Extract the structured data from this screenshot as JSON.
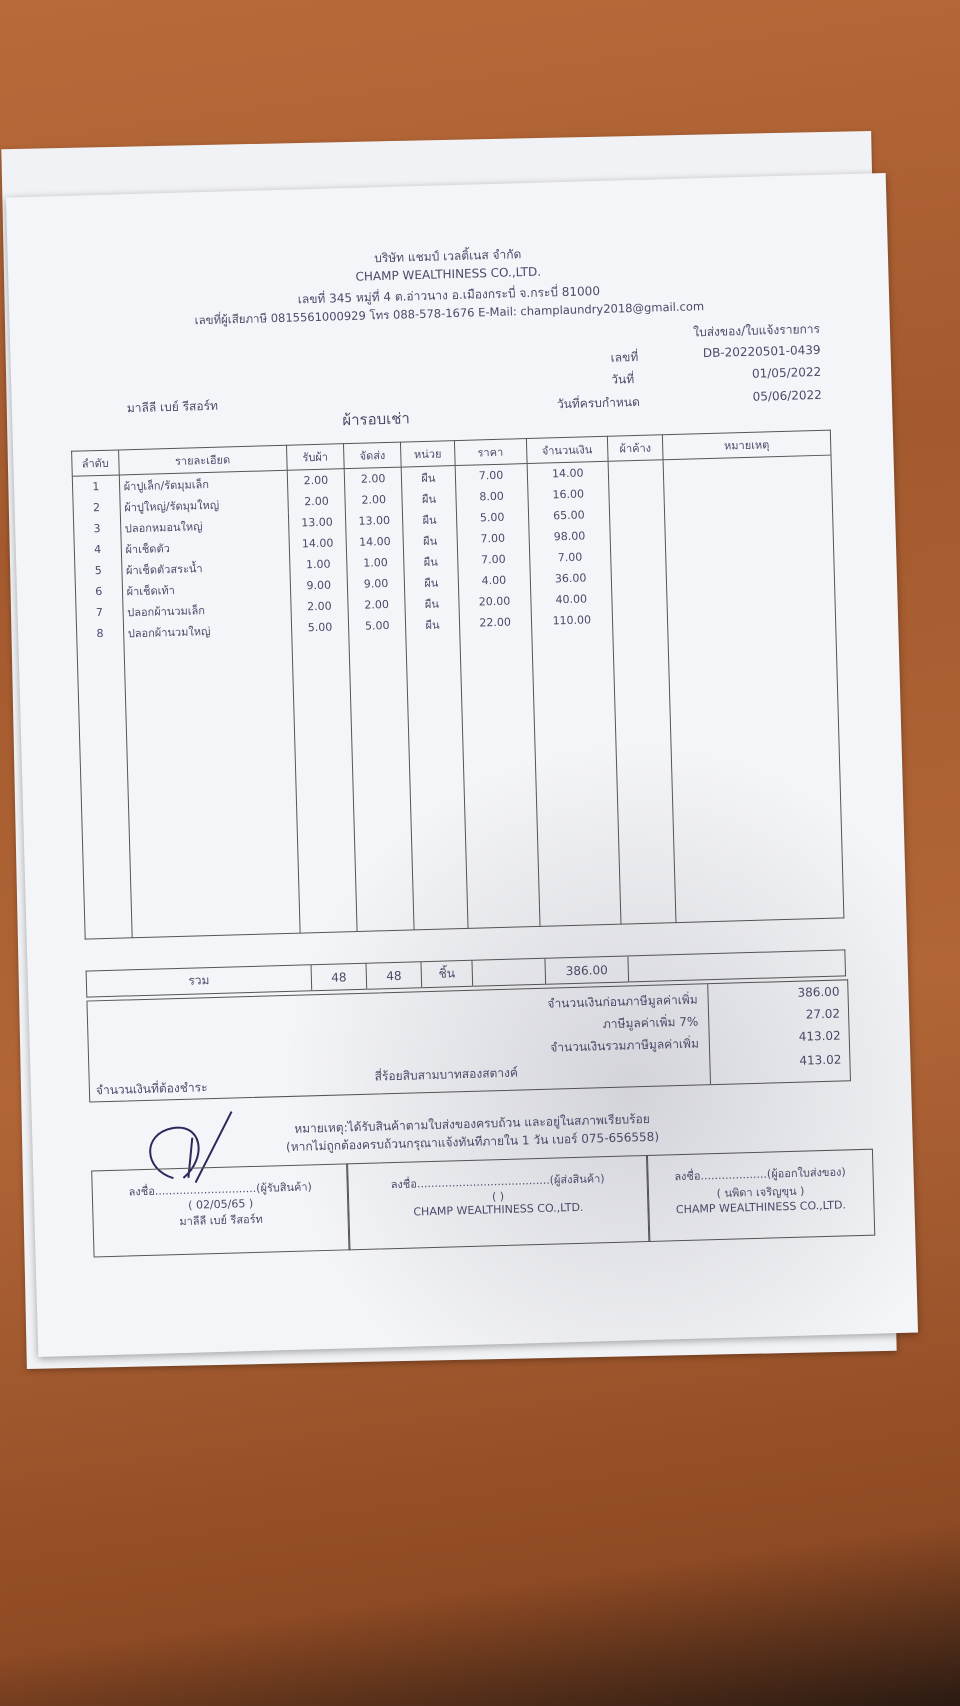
{
  "company": {
    "name_th": "บริษัท แชมป์ เวลติ้เนส จำกัด",
    "name_en": "CHAMP WEALTHINESS CO.,LTD.",
    "address": "เลขที่ 345 หมู่ที่ 4 ต.อ่าวนาง อ.เมืองกระบี่ จ.กระบี่ 81000",
    "contact": "เลขที่ผู้เสียภาษี 0815561000929 โทร 088-578-1676 E-Mail: champlaundry2018@gmail.com"
  },
  "doc": {
    "type": "ใบส่งของ/ใบแจ้งรายการ",
    "no_label": "เลขที่",
    "no": "DB-20220501-0439",
    "date_label": "วันที่",
    "date": "01/05/2022",
    "due_label": "วันที่ครบกำหนด",
    "due": "05/06/2022"
  },
  "customer": "มาลีลี เบย์ รีสอร์ท",
  "section_title": "ผ้ารอบเช่า",
  "columns": [
    "ลำดับ",
    "รายละเอียด",
    "รับผ้า",
    "จัดส่ง",
    "หน่วย",
    "ราคา",
    "จำนวนเงิน",
    "ผ้าค้าง",
    "หมายเหตุ"
  ],
  "items": [
    {
      "no": "1",
      "desc": "ผ้าปูเล็ก/รัดมุมเล็ก",
      "recv": "2.00",
      "sent": "2.00",
      "unit": "ผืน",
      "price": "7.00",
      "amount": "14.00"
    },
    {
      "no": "2",
      "desc": "ผ้าปูใหญ่/รัดมุมใหญ่",
      "recv": "2.00",
      "sent": "2.00",
      "unit": "ผืน",
      "price": "8.00",
      "amount": "16.00"
    },
    {
      "no": "3",
      "desc": "ปลอกหมอนใหญ่",
      "recv": "13.00",
      "sent": "13.00",
      "unit": "ผืน",
      "price": "5.00",
      "amount": "65.00"
    },
    {
      "no": "4",
      "desc": "ผ้าเช็ดตัว",
      "recv": "14.00",
      "sent": "14.00",
      "unit": "ผืน",
      "price": "7.00",
      "amount": "98.00"
    },
    {
      "no": "5",
      "desc": "ผ้าเช็ดตัวสระน้ำ",
      "recv": "1.00",
      "sent": "1.00",
      "unit": "ผืน",
      "price": "7.00",
      "amount": "7.00"
    },
    {
      "no": "6",
      "desc": "ผ้าเช็ดเท้า",
      "recv": "9.00",
      "sent": "9.00",
      "unit": "ผืน",
      "price": "4.00",
      "amount": "36.00"
    },
    {
      "no": "7",
      "desc": "ปลอกผ้านวมเล็ก",
      "recv": "2.00",
      "sent": "2.00",
      "unit": "ผืน",
      "price": "20.00",
      "amount": "40.00"
    },
    {
      "no": "8",
      "desc": "ปลอกผ้านวมใหญ่",
      "recv": "5.00",
      "sent": "5.00",
      "unit": "ผืน",
      "price": "22.00",
      "amount": "110.00"
    }
  ],
  "total": {
    "label": "รวม",
    "recv": "48",
    "sent": "48",
    "unit": "ชิ้น",
    "amount": "386.00"
  },
  "summary": {
    "pre_vat_label": "จำนวนเงินก่อนภาษีมูลค่าเพิ่ม",
    "pre_vat": "386.00",
    "vat_label": "ภาษีมูลค่าเพิ่ม 7%",
    "vat": "27.02",
    "with_vat_label": "จำนวนเงินรวมภาษีมูลค่าเพิ่ม",
    "with_vat": "413.02",
    "due_label": "จำนวนเงินที่ต้องชำระ",
    "due_words": "สี่ร้อยสิบสามบาทสองสตางค์",
    "due": "413.02"
  },
  "note": {
    "line1": "หมายเหตุ:ได้รับสินค้าตามใบส่งของครบถ้วน และอยู่ในสภาพเรียบร้อย",
    "line2": "(หากไม่ถูกต้องครบถ้วนกรุณาแจ้งทันทีภายใน 1 วัน   เบอร์ 075-656558)"
  },
  "signatures": [
    {
      "line": "ลงชื่อ.............................(ผู้รับสินค้า)",
      "name": "(   02/05/65   )",
      "sub": "มาลีลี เบย์ รีสอร์ท"
    },
    {
      "line": "ลงชื่อ......................................(ผู้ส่งสินค้า)",
      "name": "(                    )",
      "sub": "CHAMP WEALTHINESS CO.,LTD."
    },
    {
      "line": "ลงชื่อ...................(ผู้ออกใบส่งของ)",
      "name": "(      นพิดา เจริญขุน      )",
      "sub": "CHAMP WEALTHINESS CO.,LTD."
    }
  ]
}
